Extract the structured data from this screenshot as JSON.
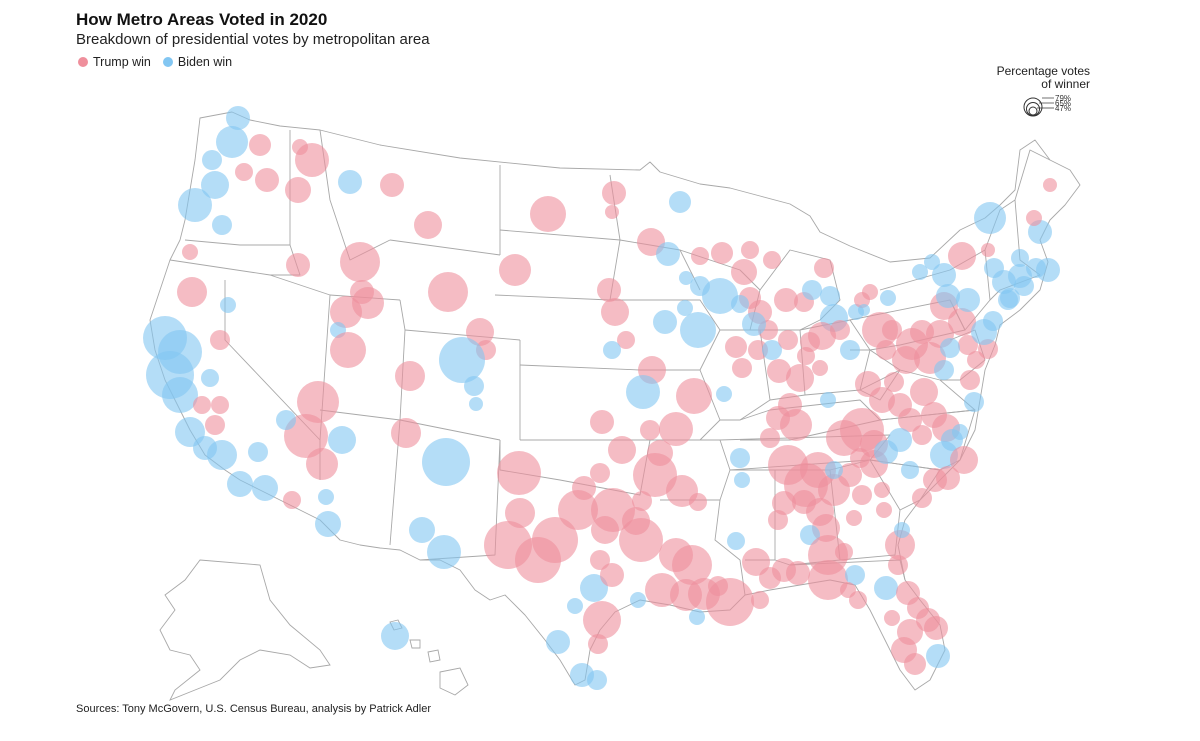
{
  "header": {
    "title": "How Metro Areas Voted in 2020",
    "subtitle": "Breakdown of presidential votes by metropolitan area"
  },
  "legend": {
    "trump_label": "Trump win",
    "biden_label": "Biden win"
  },
  "size_legend": {
    "title_line1": "Percentage votes",
    "title_line2": "of winner",
    "values": [
      "79%",
      "65%",
      "47%"
    ]
  },
  "footer": {
    "sources": "Sources: Tony McGovern, U.S. Census Bureau, analysis by Patrick Adler"
  },
  "colors": {
    "trump": "#ef8f9c",
    "biden": "#82c6f2",
    "border": "#a8a8a8",
    "background": "#ffffff"
  }
}
